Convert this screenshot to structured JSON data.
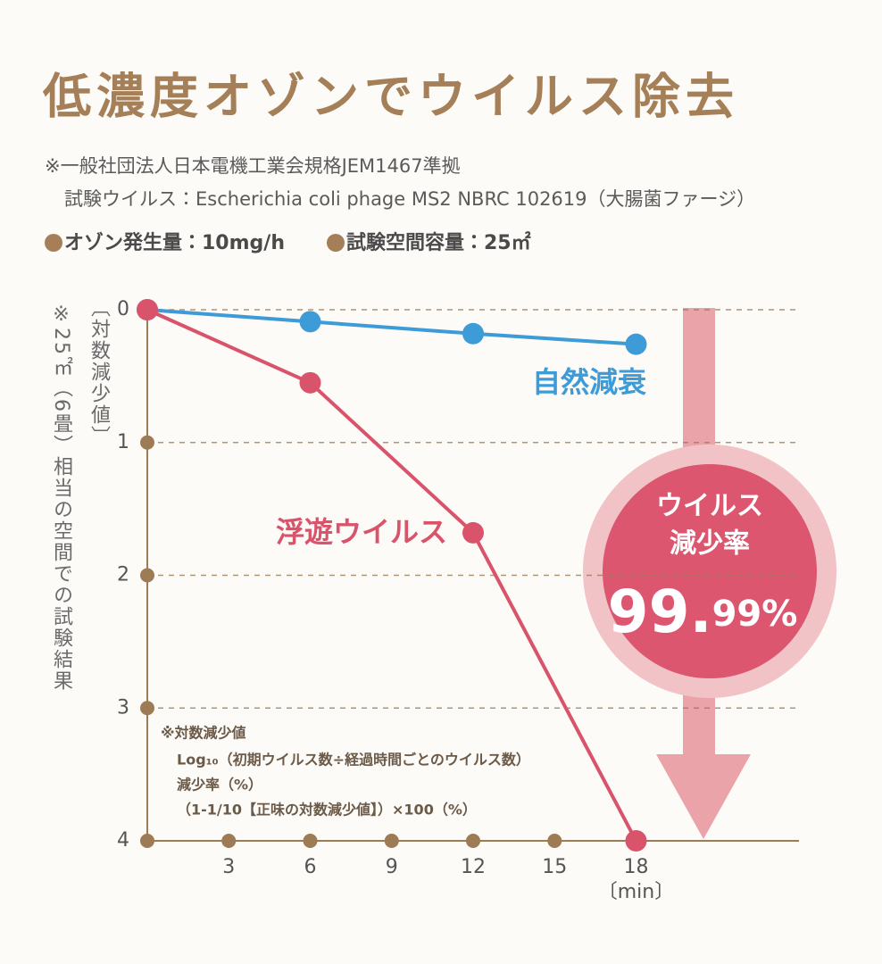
{
  "header": {
    "title": "低濃度オゾンでウイルス除去",
    "notes": [
      "※一般社団法人日本電機工業会規格JEM1467準拠",
      "試験ウイルス：Escherichia coli phage MS2 NBRC 102619（大腸菌ファージ）"
    ],
    "conditions": [
      "オゾン発生量：10mg/h",
      "試験空間容量：25㎡"
    ]
  },
  "side_note": "※25㎡（6畳）相当の空間での試験結果",
  "chart_data": {
    "type": "line",
    "x": [
      0,
      6,
      12,
      18
    ],
    "series": [
      {
        "name": "自然減衰",
        "color": "#3d9bd8",
        "values": [
          0,
          0.09,
          0.18,
          0.26
        ]
      },
      {
        "name": "浮遊ウイルス",
        "color": "#d9546b",
        "values": [
          0,
          0.55,
          1.68,
          4
        ]
      }
    ],
    "xlim": [
      0,
      24
    ],
    "xticks": [
      3,
      6,
      9,
      12,
      15,
      18
    ],
    "ylim": [
      0,
      4
    ],
    "yticks": [
      0,
      1,
      2,
      3,
      4
    ],
    "y_inverted": true,
    "ylabel": "〔対数減少値〕",
    "xlabel": "〔min〕",
    "grid": true,
    "axis_color": "#9c7b55"
  },
  "badge": {
    "label": [
      "ウイルス",
      "減少率"
    ],
    "value": [
      "99.",
      "99%"
    ]
  },
  "formula_note": [
    "※対数減少値",
    "Log₁₀（初期ウイルス数÷経過時間ごとのウイルス数）",
    "減少率（%）",
    "（1-1/10【正味の対数減少値】）×100（%）"
  ]
}
